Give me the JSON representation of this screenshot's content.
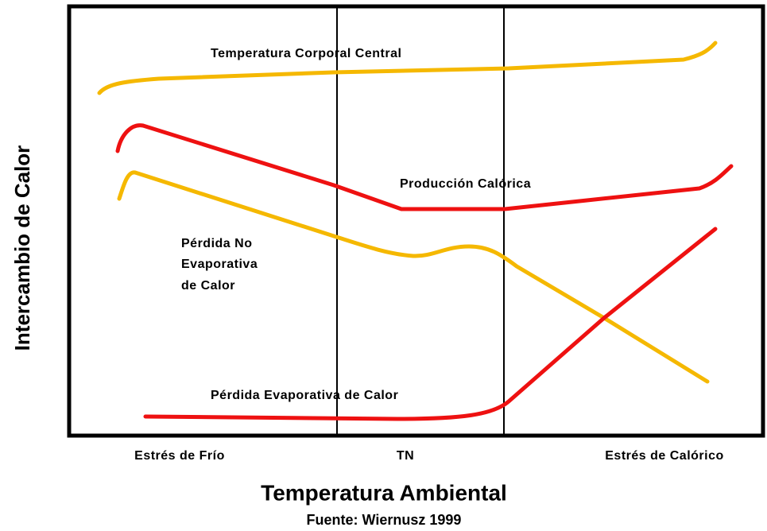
{
  "diagram": {
    "curves": {
      "core_temperature": "Temperatura Corporal Central",
      "heat_production": "Producción Calórica",
      "non_evaporative_loss": [
        "Pérdida No",
        "Evaporativa",
        "de Calor"
      ],
      "evaporative_loss": "Pérdida Evaporativa de Calor"
    },
    "zones": [
      "Estrés de Frío",
      "TN",
      "Estrés de Calórico"
    ],
    "y_axis_label": "Intercambio de Calor",
    "x_axis_label": "Temperatura Ambiental",
    "source": "Fuente: Wiernusz 1999"
  }
}
